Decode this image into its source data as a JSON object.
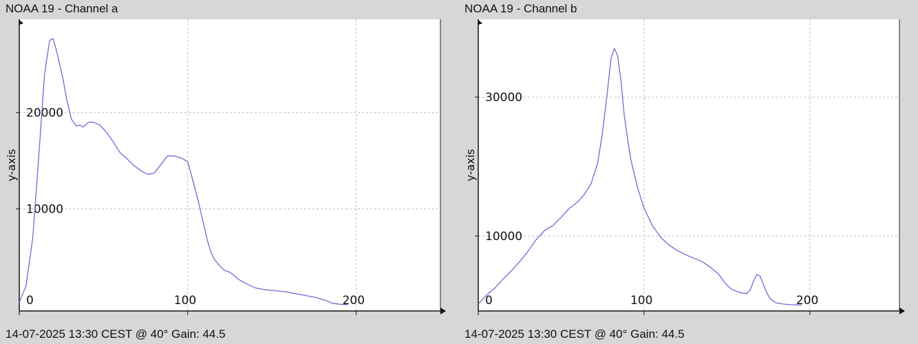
{
  "window": {
    "background": "#d7d7d7"
  },
  "panels": [
    {
      "title": "NOAA 19 - Channel a",
      "footer": "14-07-2025 13:30 CEST @ 40° Gain: 44.5"
    },
    {
      "title": "NOAA 19 - Channel b",
      "footer": "14-07-2025 13:30 CEST @ 40° Gain: 44.5"
    }
  ],
  "chart_data": [
    {
      "type": "line",
      "title": "NOAA 19 - Channel a",
      "xlabel": "",
      "ylabel": "y-axis",
      "xlim": [
        0,
        250
      ],
      "ylim": [
        -600,
        29700
      ],
      "grid": true,
      "line_color": "#6b6bd6",
      "xticks": [
        0,
        100,
        200
      ],
      "yticks": [
        10000,
        20000
      ],
      "series": [
        {
          "x": [
            0,
            4,
            8,
            12,
            15,
            18,
            20,
            22,
            24,
            26,
            28,
            31,
            34,
            36,
            38,
            41,
            44,
            48,
            52,
            56,
            60,
            64,
            68,
            72,
            76,
            80,
            84,
            88,
            92,
            96,
            100,
            103,
            106,
            108,
            110,
            112,
            114,
            116,
            118,
            120,
            122,
            124,
            126,
            128,
            130,
            134,
            140,
            146,
            152,
            158,
            164,
            170,
            176,
            182,
            186,
            190,
            195
          ],
          "y": [
            300,
            2000,
            7000,
            16500,
            24000,
            27500,
            27700,
            26500,
            25000,
            23500,
            21500,
            19300,
            18600,
            18700,
            18500,
            19000,
            19000,
            18700,
            17900,
            16900,
            15800,
            15200,
            14500,
            14000,
            13600,
            13700,
            14600,
            15500,
            15500,
            15300,
            14900,
            13000,
            11000,
            9500,
            8000,
            6500,
            5400,
            4700,
            4300,
            3900,
            3600,
            3500,
            3300,
            3000,
            2700,
            2300,
            1800,
            1600,
            1500,
            1400,
            1200,
            1000,
            800,
            500,
            200,
            100,
            50
          ]
        }
      ]
    },
    {
      "type": "line",
      "title": "NOAA 19 - Channel b",
      "xlabel": "",
      "ylabel": "y-axis",
      "xlim": [
        0,
        254
      ],
      "ylim": [
        -800,
        41200
      ],
      "grid": true,
      "line_color": "#6b6bd6",
      "xticks": [
        0,
        100,
        200
      ],
      "yticks": [
        10000,
        30000
      ],
      "series": [
        {
          "x": [
            0,
            5,
            10,
            15,
            20,
            25,
            30,
            35,
            40,
            45,
            50,
            55,
            60,
            64,
            68,
            72,
            75,
            78,
            80,
            82,
            84,
            86,
            88,
            90,
            92,
            94,
            96,
            98,
            100,
            105,
            110,
            115,
            120,
            125,
            130,
            135,
            140,
            145,
            148,
            150,
            153,
            156,
            159,
            162,
            164,
            166,
            168,
            170,
            172,
            174,
            176,
            178,
            180,
            184,
            188,
            195
          ],
          "y": [
            200,
            1500,
            2500,
            3800,
            5000,
            6300,
            7800,
            9500,
            10800,
            11500,
            12700,
            14000,
            14900,
            16000,
            17500,
            20500,
            25000,
            31000,
            35500,
            37000,
            36000,
            32500,
            27500,
            24000,
            21000,
            19000,
            17000,
            15500,
            14000,
            11500,
            9800,
            8700,
            7900,
            7300,
            6800,
            6300,
            5500,
            4500,
            3500,
            2900,
            2300,
            2000,
            1800,
            1700,
            2200,
            3500,
            4500,
            4200,
            3000,
            1800,
            1000,
            600,
            350,
            200,
            100,
            50
          ]
        }
      ]
    }
  ]
}
